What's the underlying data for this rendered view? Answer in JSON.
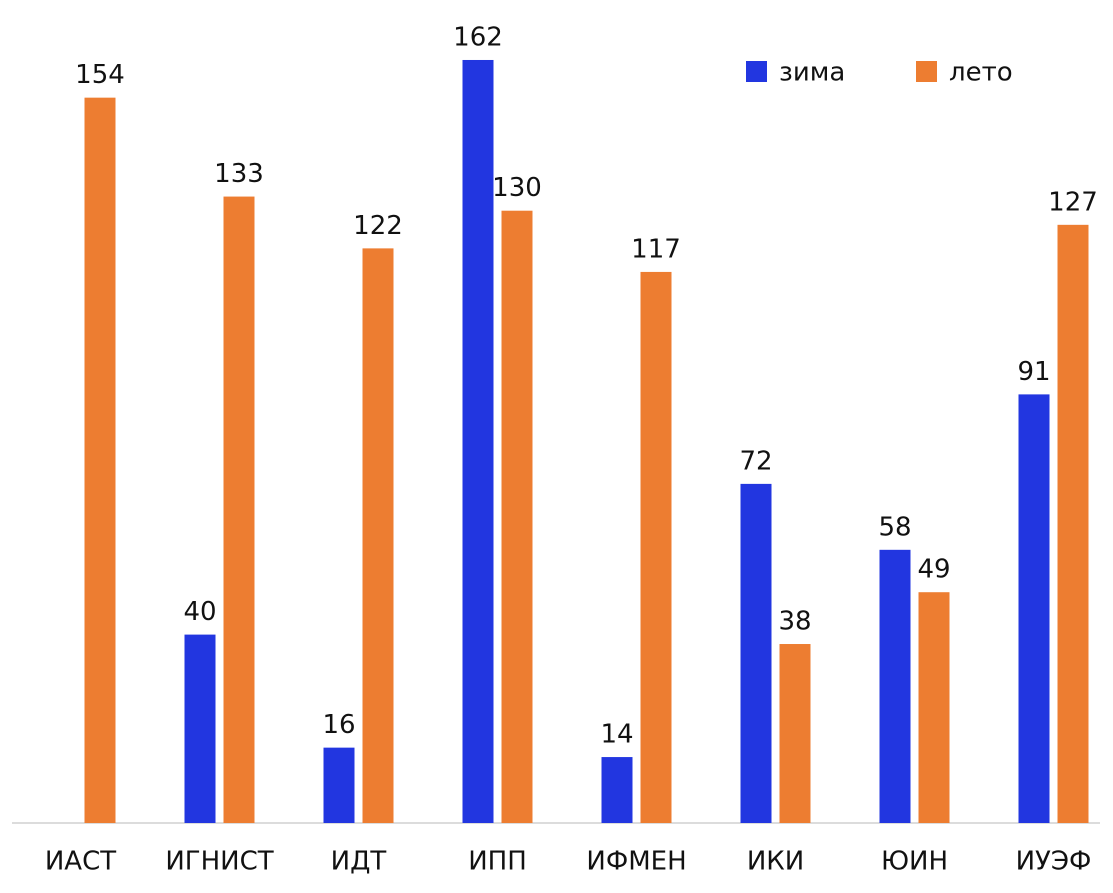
{
  "chart_data": {
    "type": "bar",
    "categories": [
      "ИАСТ",
      "ИГНИСТ",
      "ИДТ",
      "ИПП",
      "ИФМЕН",
      "ИКИ",
      "ЮИН",
      "ИУЭФ"
    ],
    "series": [
      {
        "name": "зима",
        "color": "#2236e0",
        "values": [
          null,
          40,
          16,
          162,
          14,
          72,
          58,
          91
        ]
      },
      {
        "name": "лето",
        "color": "#ed7d31",
        "values": [
          154,
          133,
          122,
          130,
          117,
          38,
          49,
          127
        ]
      }
    ],
    "ylim": [
      0,
      170
    ],
    "legend": "top-right"
  }
}
